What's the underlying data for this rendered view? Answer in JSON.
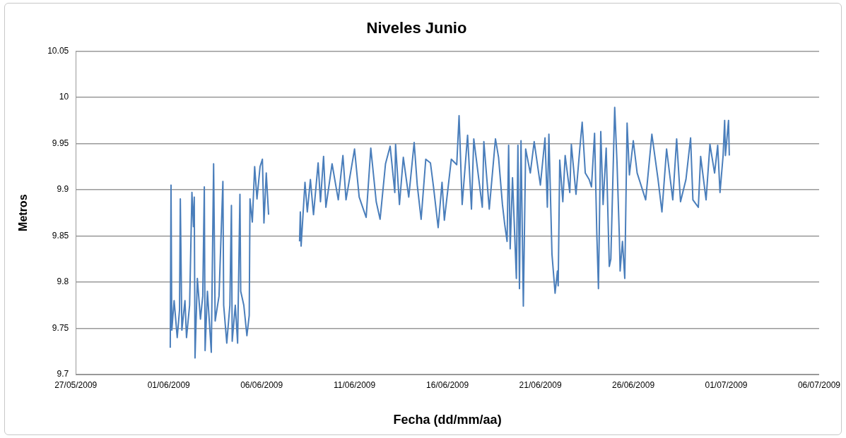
{
  "chart_data": {
    "type": "line",
    "title": "Niveles Junio",
    "xlabel": "Fecha (dd/mm/aa)",
    "ylabel": "Metros",
    "color": "#4a7ebb",
    "grid": "y",
    "xlim": [
      "2009-05-27",
      "2009-07-06"
    ],
    "xticks": [
      {
        "value": "2009-05-27",
        "label": "27/05/2009"
      },
      {
        "value": "2009-06-01",
        "label": "01/06/2009"
      },
      {
        "value": "2009-06-06",
        "label": "06/06/2009"
      },
      {
        "value": "2009-06-11",
        "label": "11/06/2009"
      },
      {
        "value": "2009-06-16",
        "label": "16/06/2009"
      },
      {
        "value": "2009-06-21",
        "label": "21/06/2009"
      },
      {
        "value": "2009-06-26",
        "label": "26/06/2009"
      },
      {
        "value": "2009-07-01",
        "label": "01/07/2009"
      },
      {
        "value": "2009-07-06",
        "label": "06/07/2009"
      }
    ],
    "ylim": [
      9.7,
      10.05
    ],
    "yticks": [
      9.7,
      9.75,
      9.8,
      9.85,
      9.9,
      9.95,
      10,
      10.05
    ],
    "x": [
      "2009-06-01T02:00",
      "2009-06-01T03:00",
      "2009-06-01T04:00",
      "2009-06-01T07:00",
      "2009-06-01T11:00",
      "2009-06-01T14:00",
      "2009-06-01T15:00",
      "2009-06-01T17:00",
      "2009-06-01T21:00",
      "2009-06-01T23:00",
      "2009-06-02T03:00",
      "2009-06-02T06:00",
      "2009-06-02T08:00",
      "2009-06-02T09:00",
      "2009-06-02T10:00",
      "2009-06-02T13:00",
      "2009-06-02T17:00",
      "2009-06-02T20:00",
      "2009-06-02T22:00",
      "2009-06-02T23:00",
      "2009-06-03T02:00",
      "2009-06-03T07:00",
      "2009-06-03T10:00",
      "2009-06-03T12:00",
      "2009-06-03T17:00",
      "2009-06-03T22:00",
      "2009-06-03T23:00",
      "2009-06-04T03:00",
      "2009-06-04T07:00",
      "2009-06-04T09:00",
      "2009-06-04T10:00",
      "2009-06-04T14:00",
      "2009-06-04T17:00",
      "2009-06-04T20:00",
      "2009-06-04T21:00",
      "2009-06-05T01:00",
      "2009-06-05T05:00",
      "2009-06-05T08:00",
      "2009-06-05T09:00",
      "2009-06-05T12:00",
      "2009-06-05T15:00",
      "2009-06-05T18:00",
      "2009-06-05T22:00",
      "2009-06-06T01:00",
      "2009-06-06T03:00",
      "2009-06-06T06:00",
      "2009-06-06T09:00",
      "2009-06-07T00:00",
      "2009-06-08T01:00",
      "2009-06-08T02:00",
      "2009-06-08T03:00",
      "2009-06-08T08:00",
      "2009-06-08T11:00",
      "2009-06-08T15:00",
      "2009-06-08T19:00",
      "2009-06-09T01:00",
      "2009-06-09T04:00",
      "2009-06-09T08:00",
      "2009-06-09T11:00",
      "2009-06-09T19:00",
      "2009-06-10T03:00",
      "2009-06-10T09:00",
      "2009-06-10T13:00",
      "2009-06-11T00:00",
      "2009-06-11T06:00",
      "2009-06-11T15:00",
      "2009-06-11T21:00",
      "2009-06-12T04:00",
      "2009-06-12T09:00",
      "2009-06-12T16:00",
      "2009-06-12T22:00",
      "2009-06-13T04:00",
      "2009-06-13T05:00",
      "2009-06-13T10:00",
      "2009-06-13T15:00",
      "2009-06-13T22:00",
      "2009-06-14T05:00",
      "2009-06-14T09:00",
      "2009-06-14T14:00",
      "2009-06-14T20:00",
      "2009-06-15T02:00",
      "2009-06-15T06:00",
      "2009-06-15T12:00",
      "2009-06-15T17:00",
      "2009-06-15T20:00",
      "2009-06-16T05:00",
      "2009-06-16T12:00",
      "2009-06-16T15:00",
      "2009-06-16T19:00",
      "2009-06-17T02:00",
      "2009-06-17T07:00",
      "2009-06-17T10:00",
      "2009-06-17T21:00",
      "2009-06-17T23:00",
      "2009-06-18T06:00",
      "2009-06-18T14:00",
      "2009-06-18T18:00",
      "2009-06-18T23:00",
      "2009-06-19T02:00",
      "2009-06-19T05:00",
      "2009-06-19T07:00",
      "2009-06-19T09:00",
      "2009-06-19T12:00",
      "2009-06-19T17:00",
      "2009-06-19T19:00",
      "2009-06-19T21:00",
      "2009-06-19T23:00",
      "2009-06-20T02:00",
      "2009-06-20T04:00",
      "2009-06-20T05:00",
      "2009-06-20T11:00",
      "2009-06-20T16:00",
      "2009-06-21T00:00",
      "2009-06-21T06:00",
      "2009-06-21T09:00",
      "2009-06-21T11:00",
      "2009-06-21T15:00",
      "2009-06-21T19:00",
      "2009-06-21T22:00",
      "2009-06-21T23:00",
      "2009-06-22T01:00",
      "2009-06-22T05:00",
      "2009-06-22T08:00",
      "2009-06-22T14:00",
      "2009-06-22T16:00",
      "2009-06-22T22:00",
      "2009-06-23T03:00",
      "2009-06-23T06:00",
      "2009-06-23T10:00",
      "2009-06-23T15:00",
      "2009-06-23T18:00",
      "2009-06-23T22:00",
      "2009-06-24T01:00",
      "2009-06-24T03:00",
      "2009-06-24T06:00",
      "2009-06-24T09:00",
      "2009-06-24T13:00",
      "2009-06-24T17:00",
      "2009-06-24T19:00",
      "2009-06-25T00:00",
      "2009-06-25T03:00",
      "2009-06-25T06:00",
      "2009-06-25T07:00",
      "2009-06-25T10:00",
      "2009-06-25T13:00",
      "2009-06-25T16:00",
      "2009-06-25T19:00",
      "2009-06-26T00:00",
      "2009-06-26T05:00",
      "2009-06-26T16:00",
      "2009-06-27T00:00",
      "2009-06-27T08:00",
      "2009-06-27T13:00",
      "2009-06-27T19:00",
      "2009-06-28T03:00",
      "2009-06-28T08:00",
      "2009-06-28T13:00",
      "2009-06-28T20:00",
      "2009-06-29T02:00",
      "2009-06-29T05:00",
      "2009-06-29T12:00",
      "2009-06-29T15:00",
      "2009-06-29T22:00",
      "2009-06-30T03:00",
      "2009-06-30T09:00",
      "2009-06-30T13:00",
      "2009-06-30T16:00",
      "2009-06-30T20:00",
      "2009-06-30T22:00",
      "2009-06-30T23:00",
      "2009-07-01T03:00",
      "2009-07-01T04:00"
    ],
    "values": [
      9.729,
      9.905,
      9.748,
      9.78,
      9.74,
      9.77,
      9.89,
      9.748,
      9.78,
      9.74,
      9.775,
      9.897,
      9.86,
      9.892,
      9.718,
      9.804,
      9.76,
      9.785,
      9.903,
      9.726,
      9.79,
      9.724,
      9.928,
      9.758,
      9.785,
      9.909,
      9.775,
      9.734,
      9.775,
      9.883,
      9.736,
      9.775,
      9.734,
      9.895,
      9.79,
      9.775,
      9.742,
      9.764,
      9.89,
      9.865,
      9.925,
      9.89,
      9.925,
      9.933,
      9.864,
      9.918,
      9.873,
      null,
      9.844,
      9.876,
      9.839,
      9.908,
      9.876,
      9.911,
      9.873,
      9.929,
      9.887,
      9.936,
      9.881,
      9.928,
      9.889,
      9.937,
      9.889,
      9.944,
      9.892,
      9.87,
      9.945,
      9.887,
      9.868,
      9.928,
      9.947,
      9.897,
      9.949,
      9.884,
      9.935,
      9.892,
      9.951,
      9.905,
      9.868,
      9.933,
      9.929,
      9.903,
      9.859,
      9.908,
      9.867,
      9.933,
      9.927,
      9.98,
      9.884,
      9.959,
      9.879,
      9.955,
      9.881,
      9.952,
      9.879,
      9.955,
      9.935,
      9.884,
      9.862,
      9.844,
      9.948,
      9.836,
      9.913,
      9.804,
      9.948,
      9.793,
      9.953,
      9.774,
      9.887,
      9.944,
      9.918,
      9.952,
      9.905,
      9.956,
      9.881,
      9.96,
      9.83,
      9.788,
      9.812,
      9.796,
      9.932,
      9.887,
      9.937,
      9.897,
      9.949,
      9.895,
      9.945,
      9.973,
      9.918,
      9.911,
      9.903,
      9.961,
      9.849,
      9.793,
      9.963,
      9.884,
      9.945,
      9.817,
      9.825,
      9.989,
      9.929,
      9.849,
      9.812,
      9.844,
      9.804,
      9.972,
      9.916,
      9.953,
      9.918,
      9.889,
      9.96,
      9.911,
      9.876,
      9.944,
      9.889,
      9.955,
      9.887,
      9.911,
      9.956,
      9.889,
      9.881,
      9.936,
      9.889,
      9.949,
      9.918,
      9.948,
      9.897,
      9.937,
      9.975,
      9.937,
      9.975,
      9.937
    ]
  }
}
